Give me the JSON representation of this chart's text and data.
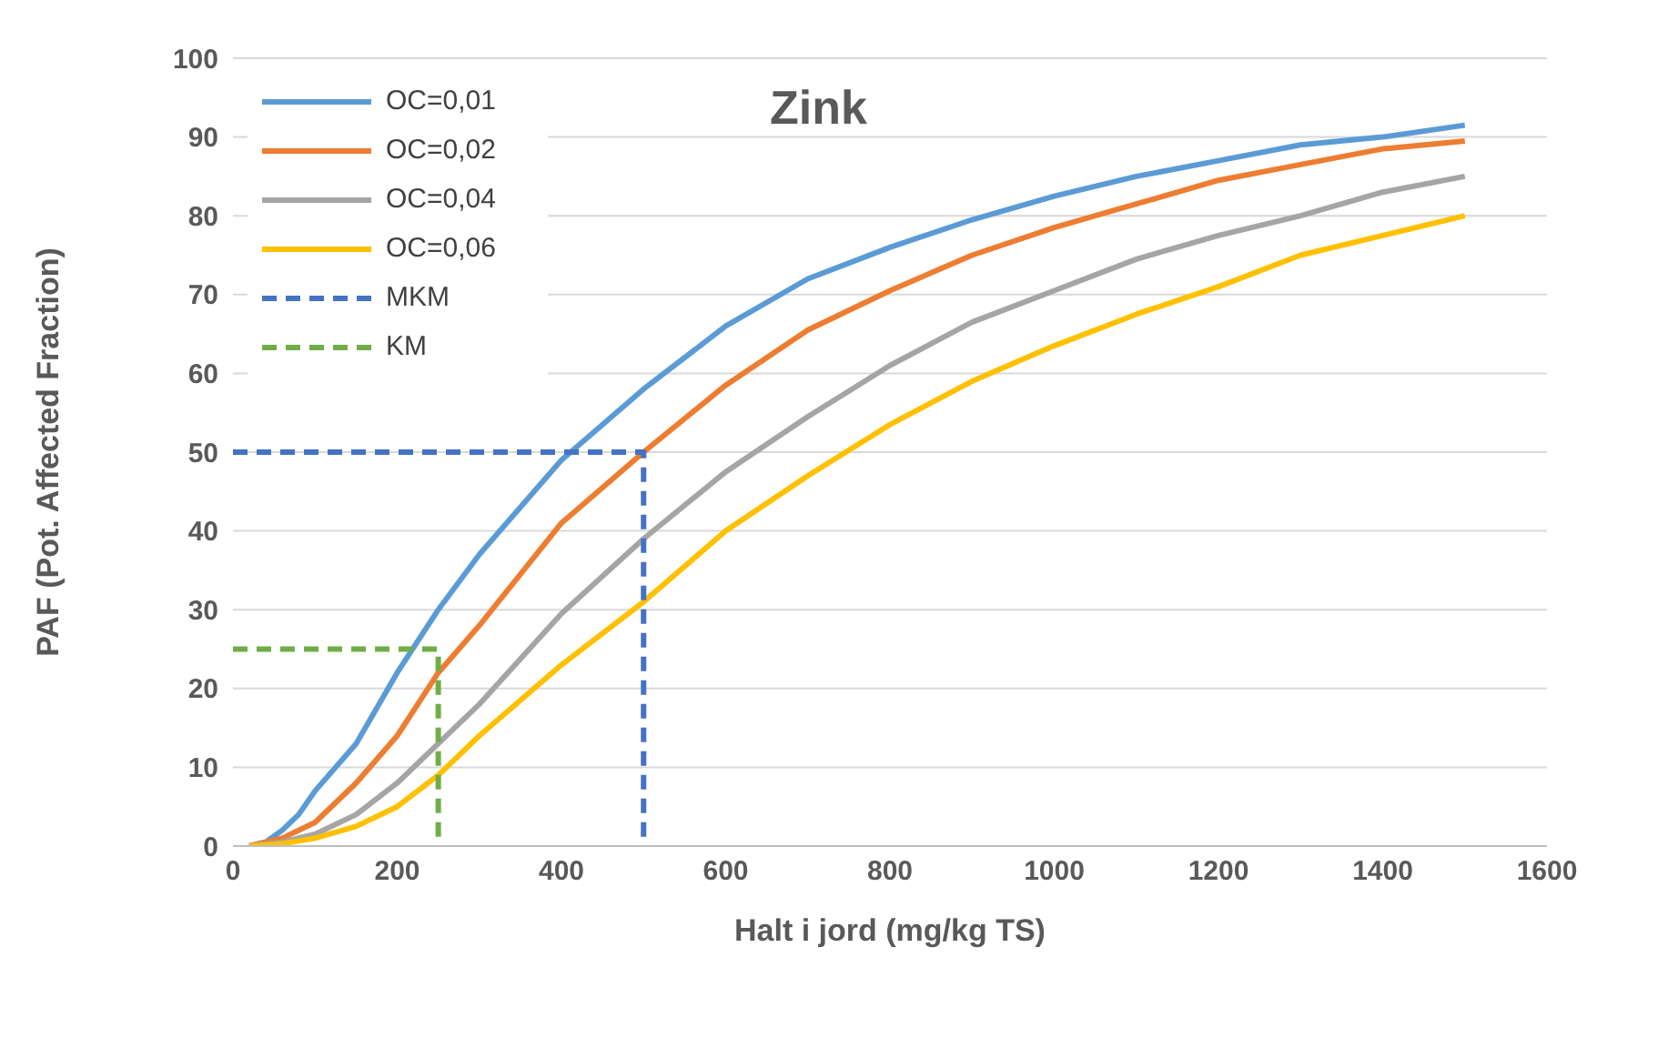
{
  "chart_data": {
    "type": "line",
    "title": "Zink",
    "xlabel": "Halt  i jord (mg/kg TS)",
    "ylabel": "PAF (Pot. Affected Fraction)",
    "xlim": [
      0,
      1600
    ],
    "xticks": [
      0,
      200,
      400,
      600,
      800,
      1000,
      1200,
      1400,
      1600
    ],
    "ylim": [
      0,
      100
    ],
    "yticks": [
      0,
      10,
      20,
      30,
      40,
      50,
      60,
      70,
      80,
      90,
      100
    ],
    "grid": "y",
    "legend": "top left",
    "marker": "none",
    "line_style": "solid",
    "series": [
      {
        "name": "OC=0,01",
        "color": "#5b9bd5",
        "x": [
          20,
          40,
          60,
          80,
          100,
          150,
          200,
          250,
          300,
          400,
          500,
          600,
          700,
          800,
          900,
          1000,
          1100,
          1200,
          1300,
          1400,
          1500
        ],
        "values": [
          0,
          0.5,
          2,
          4,
          7,
          13,
          22,
          30,
          37,
          49,
          58,
          66,
          72,
          76,
          79.5,
          82.5,
          85,
          87,
          89,
          90,
          91.5
        ]
      },
      {
        "name": "OC=0,02",
        "color": "#ed7d31",
        "x": [
          20,
          60,
          100,
          150,
          200,
          250,
          300,
          400,
          500,
          600,
          700,
          800,
          900,
          1000,
          1100,
          1200,
          1300,
          1400,
          1500
        ],
        "values": [
          0,
          1,
          3,
          8,
          14,
          22,
          28,
          41,
          50,
          58.5,
          65.5,
          70.5,
          75,
          78.5,
          81.5,
          84.5,
          86.5,
          88.5,
          89.5
        ]
      },
      {
        "name": "OC=0,04",
        "color": "#a5a5a5",
        "x": [
          20,
          60,
          100,
          150,
          200,
          250,
          300,
          400,
          500,
          600,
          700,
          800,
          900,
          1000,
          1100,
          1200,
          1300,
          1400,
          1500
        ],
        "values": [
          0,
          0.5,
          1.5,
          4,
          8,
          13,
          18,
          29.5,
          39,
          47.5,
          54.5,
          61,
          66.5,
          70.5,
          74.5,
          77.5,
          80,
          83,
          85
        ]
      },
      {
        "name": "OC=0,06",
        "color": "#ffc000",
        "x": [
          20,
          60,
          100,
          150,
          200,
          250,
          300,
          400,
          500,
          600,
          700,
          800,
          900,
          1000,
          1100,
          1200,
          1300,
          1400,
          1500
        ],
        "values": [
          0,
          0.3,
          1,
          2.5,
          5,
          9,
          14,
          23,
          31,
          40,
          47,
          53.5,
          59,
          63.5,
          67.5,
          71,
          75,
          77.5,
          80
        ]
      },
      {
        "name": "MKM",
        "color": "#4472c4",
        "line_style": "dashed",
        "x": [
          0,
          500,
          500
        ],
        "values": [
          50,
          50,
          0
        ]
      },
      {
        "name": "KM",
        "color": "#70ad47",
        "line_style": "dashed",
        "x": [
          0,
          250,
          250
        ],
        "values": [
          25,
          25,
          0
        ]
      }
    ]
  }
}
